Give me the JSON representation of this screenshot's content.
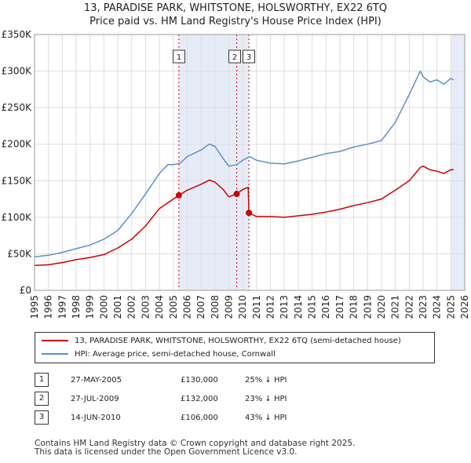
{
  "title_line1": "13, PARADISE PARK, WHITSTONE, HOLSWORTHY, EX22 6TQ",
  "title_line2": "Price paid vs. HM Land Registry's House Price Index (HPI)",
  "colors": {
    "property": "#cc0000",
    "hpi": "#5b8fcf",
    "shade": "#e6ecf7",
    "grid": "#dddddd"
  },
  "chart_data": {
    "type": "line",
    "title": "13, PARADISE PARK, WHITSTONE, HOLSWORTHY, EX22 6TQ — Price paid vs. HM Land Registry's House Price Index (HPI)",
    "xlabel": "",
    "ylabel": "",
    "xlim": [
      1995,
      2026
    ],
    "ylim": [
      0,
      350000
    ],
    "y_ticks": [
      {
        "value": 0,
        "label": "£0"
      },
      {
        "value": 50000,
        "label": "£50K"
      },
      {
        "value": 100000,
        "label": "£100K"
      },
      {
        "value": 150000,
        "label": "£150K"
      },
      {
        "value": 200000,
        "label": "£200K"
      },
      {
        "value": 250000,
        "label": "£250K"
      },
      {
        "value": 300000,
        "label": "£300K"
      },
      {
        "value": 350000,
        "label": "£350K"
      }
    ],
    "x_ticks": [
      "1995",
      "1996",
      "1997",
      "1998",
      "1999",
      "2000",
      "2001",
      "2002",
      "2003",
      "2004",
      "2005",
      "2006",
      "2007",
      "2008",
      "2009",
      "2010",
      "2011",
      "2012",
      "2013",
      "2014",
      "2015",
      "2016",
      "2017",
      "2018",
      "2019",
      "2020",
      "2021",
      "2022",
      "2023",
      "2024",
      "2025",
      "2026"
    ],
    "grid": true,
    "shaded_ranges": [
      [
        2005.4,
        2010.45
      ],
      [
        2025.0,
        2026.0
      ]
    ],
    "series": [
      {
        "name": "13, PARADISE PARK, WHITSTONE, HOLSWORTHY, EX22 6TQ (semi-detached house)",
        "x": [
          1995,
          1996,
          1997,
          1998,
          1999,
          2000,
          2001,
          2002,
          2003,
          2004,
          2005.4,
          2006,
          2007,
          2007.6,
          2008,
          2008.6,
          2009,
          2009.57,
          2010,
          2010.4,
          2010.45,
          2011,
          2012,
          2013,
          2014,
          2015,
          2016,
          2017,
          2018,
          2019,
          2020,
          2021,
          2022,
          2022.8,
          2023,
          2023.5,
          2024,
          2024.5,
          2025,
          2025.2
        ],
        "values": [
          34000,
          35000,
          38000,
          42000,
          45000,
          49000,
          58000,
          70000,
          88000,
          112000,
          130000,
          137000,
          145000,
          151000,
          148000,
          138000,
          128000,
          132000,
          138000,
          141000,
          106000,
          101000,
          101000,
          100000,
          102000,
          104000,
          107000,
          111000,
          116000,
          120000,
          125000,
          137000,
          150000,
          168000,
          170000,
          165000,
          163000,
          160000,
          165000,
          165000
        ]
      },
      {
        "name": "HPI: Average price, semi-detached house, Cornwall",
        "x": [
          1995,
          1996,
          1997,
          1998,
          1999,
          2000,
          2001,
          2002,
          2003,
          2004,
          2004.6,
          2005,
          2005.5,
          2006,
          2007,
          2007.6,
          2008,
          2008.6,
          2009,
          2009.57,
          2010,
          2010.5,
          2011,
          2012,
          2013,
          2014,
          2015,
          2016,
          2017,
          2018,
          2019,
          2020,
          2021,
          2022,
          2022.8,
          2023,
          2023.5,
          2024,
          2024.5,
          2025,
          2025.2
        ],
        "values": [
          46000,
          48000,
          52000,
          57000,
          62000,
          70000,
          82000,
          105000,
          132000,
          160000,
          172000,
          172000,
          174000,
          183000,
          192000,
          200000,
          197000,
          180000,
          170000,
          172000,
          178000,
          183000,
          178000,
          174000,
          173000,
          177000,
          182000,
          187000,
          190000,
          196000,
          200000,
          205000,
          230000,
          268000,
          300000,
          292000,
          285000,
          288000,
          282000,
          290000,
          288000
        ]
      }
    ],
    "annotations": [
      {
        "label": "1",
        "x": 2005.4,
        "y": 130000
      },
      {
        "label": "2",
        "x": 2009.57,
        "y": 132000
      },
      {
        "label": "3",
        "x": 2010.45,
        "y": 106000
      }
    ]
  },
  "legend": {
    "property_label": "13, PARADISE PARK, WHITSTONE, HOLSWORTHY, EX22 6TQ (semi-detached house)",
    "hpi_label": "HPI: Average price, semi-detached house, Cornwall"
  },
  "sales": [
    {
      "num": "1",
      "date": "27-MAY-2005",
      "price": "£130,000",
      "hpi": "25% ↓ HPI"
    },
    {
      "num": "2",
      "date": "27-JUL-2009",
      "price": "£132,000",
      "hpi": "23% ↓ HPI"
    },
    {
      "num": "3",
      "date": "14-JUN-2010",
      "price": "£106,000",
      "hpi": "43% ↓ HPI"
    }
  ],
  "footer_line1": "Contains HM Land Registry data © Crown copyright and database right 2025.",
  "footer_line2": "This data is licensed under the Open Government Licence v3.0."
}
